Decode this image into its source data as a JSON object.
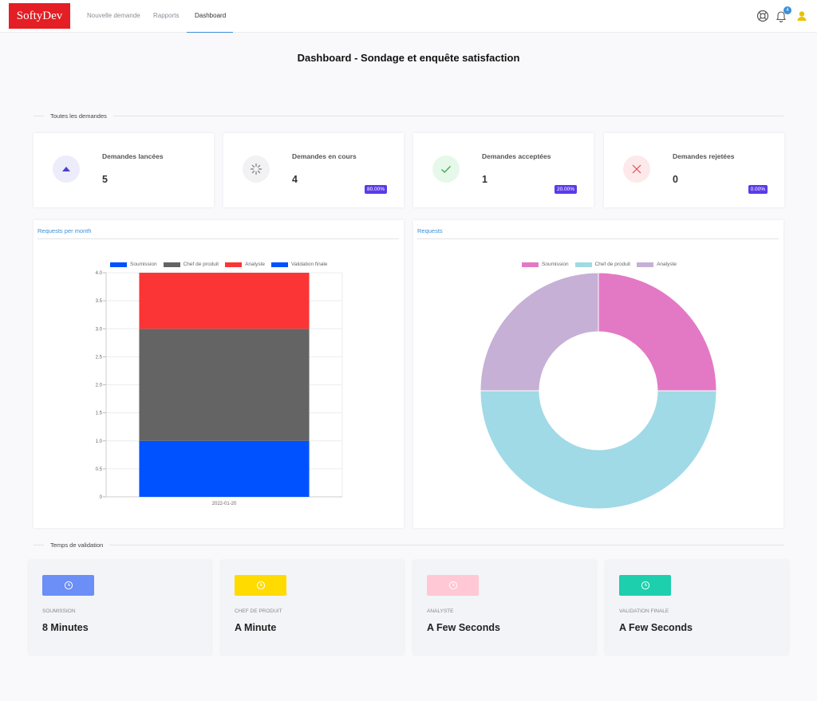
{
  "header": {
    "logo": "SoftyDev",
    "nav": [
      "Nouvelle demande",
      "Rapports",
      "Dashboard"
    ],
    "notification_count": "4"
  },
  "page": {
    "title": "Dashboard - Sondage et enquête satisfaction"
  },
  "sections": {
    "all_requests": "Toutes les demandes",
    "validation_time": "Temps de validation"
  },
  "stats": [
    {
      "title": "Demandes lancées",
      "value": "5",
      "pct": "",
      "icon": "triangle-up-icon",
      "icon_bg": "#ececfb",
      "icon_color": "#4c3fcf"
    },
    {
      "title": "Demandes en cours",
      "value": "4",
      "pct": "80.00%",
      "icon": "spinner-icon",
      "icon_bg": "#f2f2f4",
      "icon_color": "#777777"
    },
    {
      "title": "Demandes acceptées",
      "value": "1",
      "pct": "20.00%",
      "icon": "check-icon",
      "icon_bg": "#e6f8ea",
      "icon_color": "#3aa84f"
    },
    {
      "title": "Demandes rejetées",
      "value": "0",
      "pct": "0.00%",
      "icon": "x-icon",
      "icon_bg": "#fde9ea",
      "icon_color": "#e34b55"
    }
  ],
  "panels": {
    "left_tab": "Requests per month",
    "right_tab": "Requests"
  },
  "chart_data": [
    {
      "type": "bar",
      "stacked": true,
      "categories": [
        "2022-01-20"
      ],
      "series": [
        {
          "name": "Soumission",
          "values": [
            1
          ],
          "color": "#0051ff"
        },
        {
          "name": "Chef de produit",
          "values": [
            2
          ],
          "color": "#646464"
        },
        {
          "name": "Analyste",
          "values": [
            1
          ],
          "color": "#fb3535"
        },
        {
          "name": "Validation finale",
          "values": [
            0
          ],
          "color": "#0051ff"
        }
      ],
      "ylim": [
        0,
        4.0
      ],
      "yticks": [
        "0",
        "0.5",
        "1.0",
        "1.5",
        "2.0",
        "2.5",
        "3.0",
        "3.5",
        "4.0"
      ],
      "legend": "top",
      "grid": true
    },
    {
      "type": "pie",
      "donut": true,
      "categories": [
        "Soumission",
        "Chef de produit",
        "Analyste"
      ],
      "values": [
        1,
        2,
        1
      ],
      "colors": [
        "#e379c4",
        "#a0dae6",
        "#c6b0d6"
      ],
      "legend": "top"
    }
  ],
  "times": [
    {
      "label": "Soumission",
      "value": "8 Minutes",
      "color": "#6b8ef7"
    },
    {
      "label": "Chef de produit",
      "value": "A Minute",
      "color": "#ffdb00"
    },
    {
      "label": "Analyste",
      "value": "A Few Seconds",
      "color": "#ffc8d4"
    },
    {
      "label": "Validation finale",
      "value": "A Few Seconds",
      "color": "#1dcfac"
    }
  ]
}
